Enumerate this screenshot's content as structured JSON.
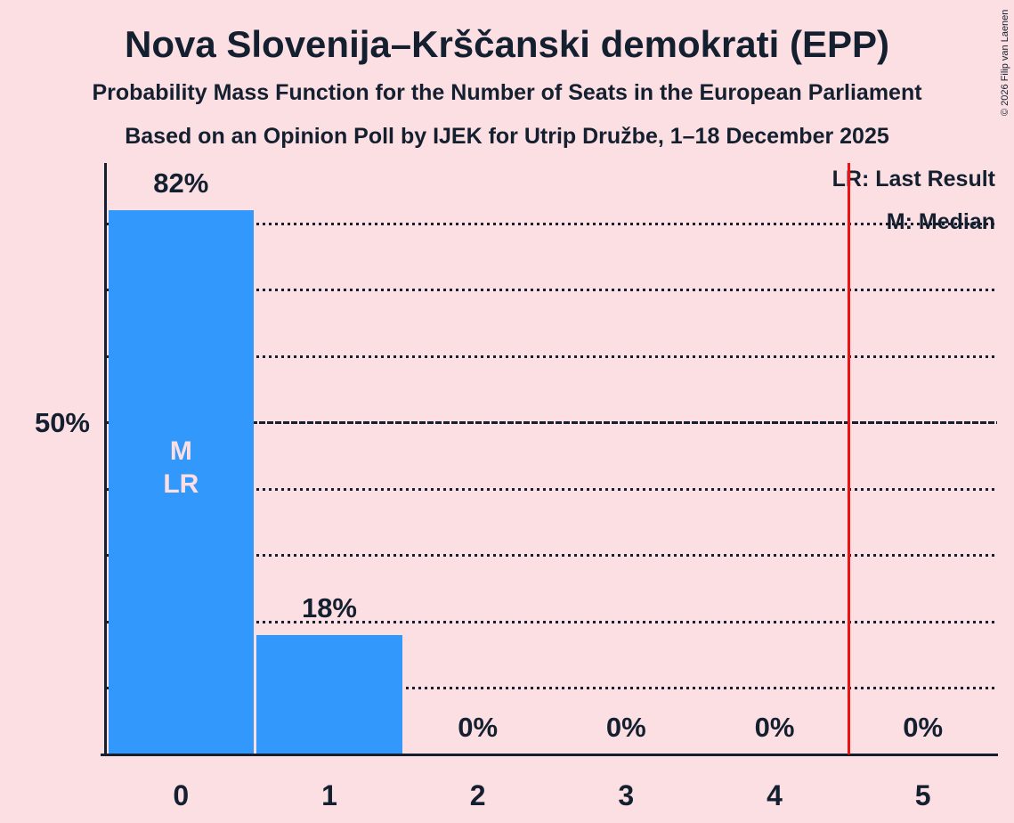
{
  "meta": {
    "copyright": "© 2026 Filip van Laenen"
  },
  "header": {
    "title": "Nova Slovenija–Krščanski demokrati (EPP)",
    "subtitle_line1": "Probability Mass Function for the Number of Seats in the European Parliament",
    "subtitle_line2": "Based on an Opinion Poll by IJEK for Utrip Družbe, 1–18 December 2025"
  },
  "legend": {
    "last_result_label": "LR: Last Result",
    "median_label": "M: Median"
  },
  "y_axis": {
    "tick_label": "50%",
    "tick_value": 50
  },
  "chart_data": {
    "type": "bar",
    "title": "Probability Mass Function for the Number of Seats in the European Parliament",
    "categories": [
      "0",
      "1",
      "2",
      "3",
      "4",
      "5"
    ],
    "values": [
      82,
      18,
      0,
      0,
      0,
      0
    ],
    "bar_labels": [
      "82%",
      "18%",
      "0%",
      "0%",
      "0%",
      "0%"
    ],
    "xlabel": "",
    "ylabel": "",
    "ylim": [
      0,
      89
    ],
    "grid": "dotted horizontal lines every 10%",
    "gridlines_pct": [
      10,
      20,
      30,
      40,
      60,
      70,
      80
    ],
    "median_gridline_pct": 50,
    "annotated_bar": {
      "category": "0",
      "lines": [
        "M",
        "LR"
      ]
    },
    "last_result_marker_x": 4.5,
    "legend_position": "top-right"
  },
  "colors": {
    "background": "#fbdfe2",
    "bar": "#3398fb",
    "text": "#142030",
    "bar_annotation_text": "#fbdfe2",
    "marker_line": "#ee1111"
  }
}
